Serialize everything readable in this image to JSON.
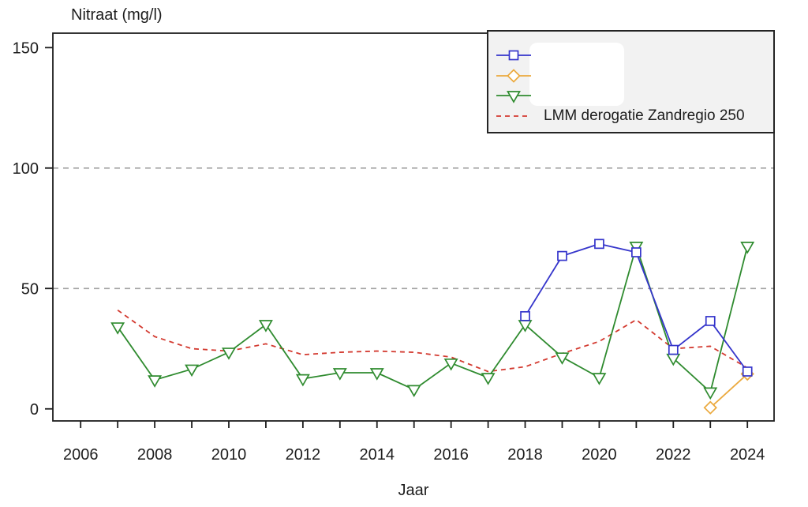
{
  "chart_data": {
    "type": "line",
    "title": "Nitraat (mg/l)",
    "xlabel": "Jaar",
    "x_range": [
      2005.25,
      2024.72
    ],
    "y_range": [
      -5,
      156
    ],
    "y_ticks": [
      0,
      50,
      100,
      150
    ],
    "x_ticks": [
      2006,
      2007,
      2008,
      2009,
      2010,
      2011,
      2012,
      2013,
      2014,
      2015,
      2016,
      2017,
      2018,
      2019,
      2020,
      2021,
      2022,
      2023,
      2024
    ],
    "x_tick_labels": [
      2006,
      2008,
      2010,
      2012,
      2014,
      2016,
      2018,
      2020,
      2022,
      2024
    ],
    "gridlines_y": [
      50,
      100
    ],
    "legend_position": "top-right",
    "series": [
      {
        "name": "",
        "marker": "square",
        "line": "solid",
        "color": "#3535cb",
        "x": [
          2018,
          2019,
          2020,
          2021,
          2022,
          2023,
          2024
        ],
        "values": [
          38.5,
          63.5,
          68.5,
          65,
          24.5,
          36.5,
          15.5
        ]
      },
      {
        "name": "",
        "marker": "diamond",
        "line": "solid",
        "color": "#eba93d",
        "x": [
          2023,
          2024
        ],
        "values": [
          0.5,
          14.5
        ]
      },
      {
        "name": "",
        "marker": "triangle-down",
        "line": "solid",
        "color": "#2f8b2f",
        "x": [
          2007,
          2008,
          2009,
          2010,
          2011,
          2012,
          2013,
          2014,
          2015,
          2016,
          2017,
          2018,
          2019,
          2020,
          2021,
          2022,
          2023,
          2024
        ],
        "values": [
          34,
          12,
          16.5,
          23.5,
          35,
          12.5,
          15,
          15,
          8,
          19,
          13,
          35,
          21.5,
          13,
          67.5,
          21,
          7,
          67.5
        ]
      },
      {
        "name": "LMM derogatie Zandregio 250",
        "marker": "none",
        "line": "dashed",
        "color": "#d33a30",
        "x": [
          2007,
          2008,
          2009,
          2010,
          2011,
          2012,
          2013,
          2014,
          2015,
          2016,
          2017,
          2018,
          2019,
          2020,
          2021,
          2022,
          2023,
          2024
        ],
        "values": [
          41,
          30,
          25,
          24,
          27,
          22.5,
          23.5,
          24,
          23.5,
          21.5,
          15.5,
          17.5,
          23,
          28,
          37,
          25,
          26,
          17
        ]
      }
    ],
    "colors": {
      "axis": "#1d1d1d",
      "grid": "#a4a4a4",
      "legend_background": "#f2f2f2",
      "background": "#ffffff"
    }
  }
}
